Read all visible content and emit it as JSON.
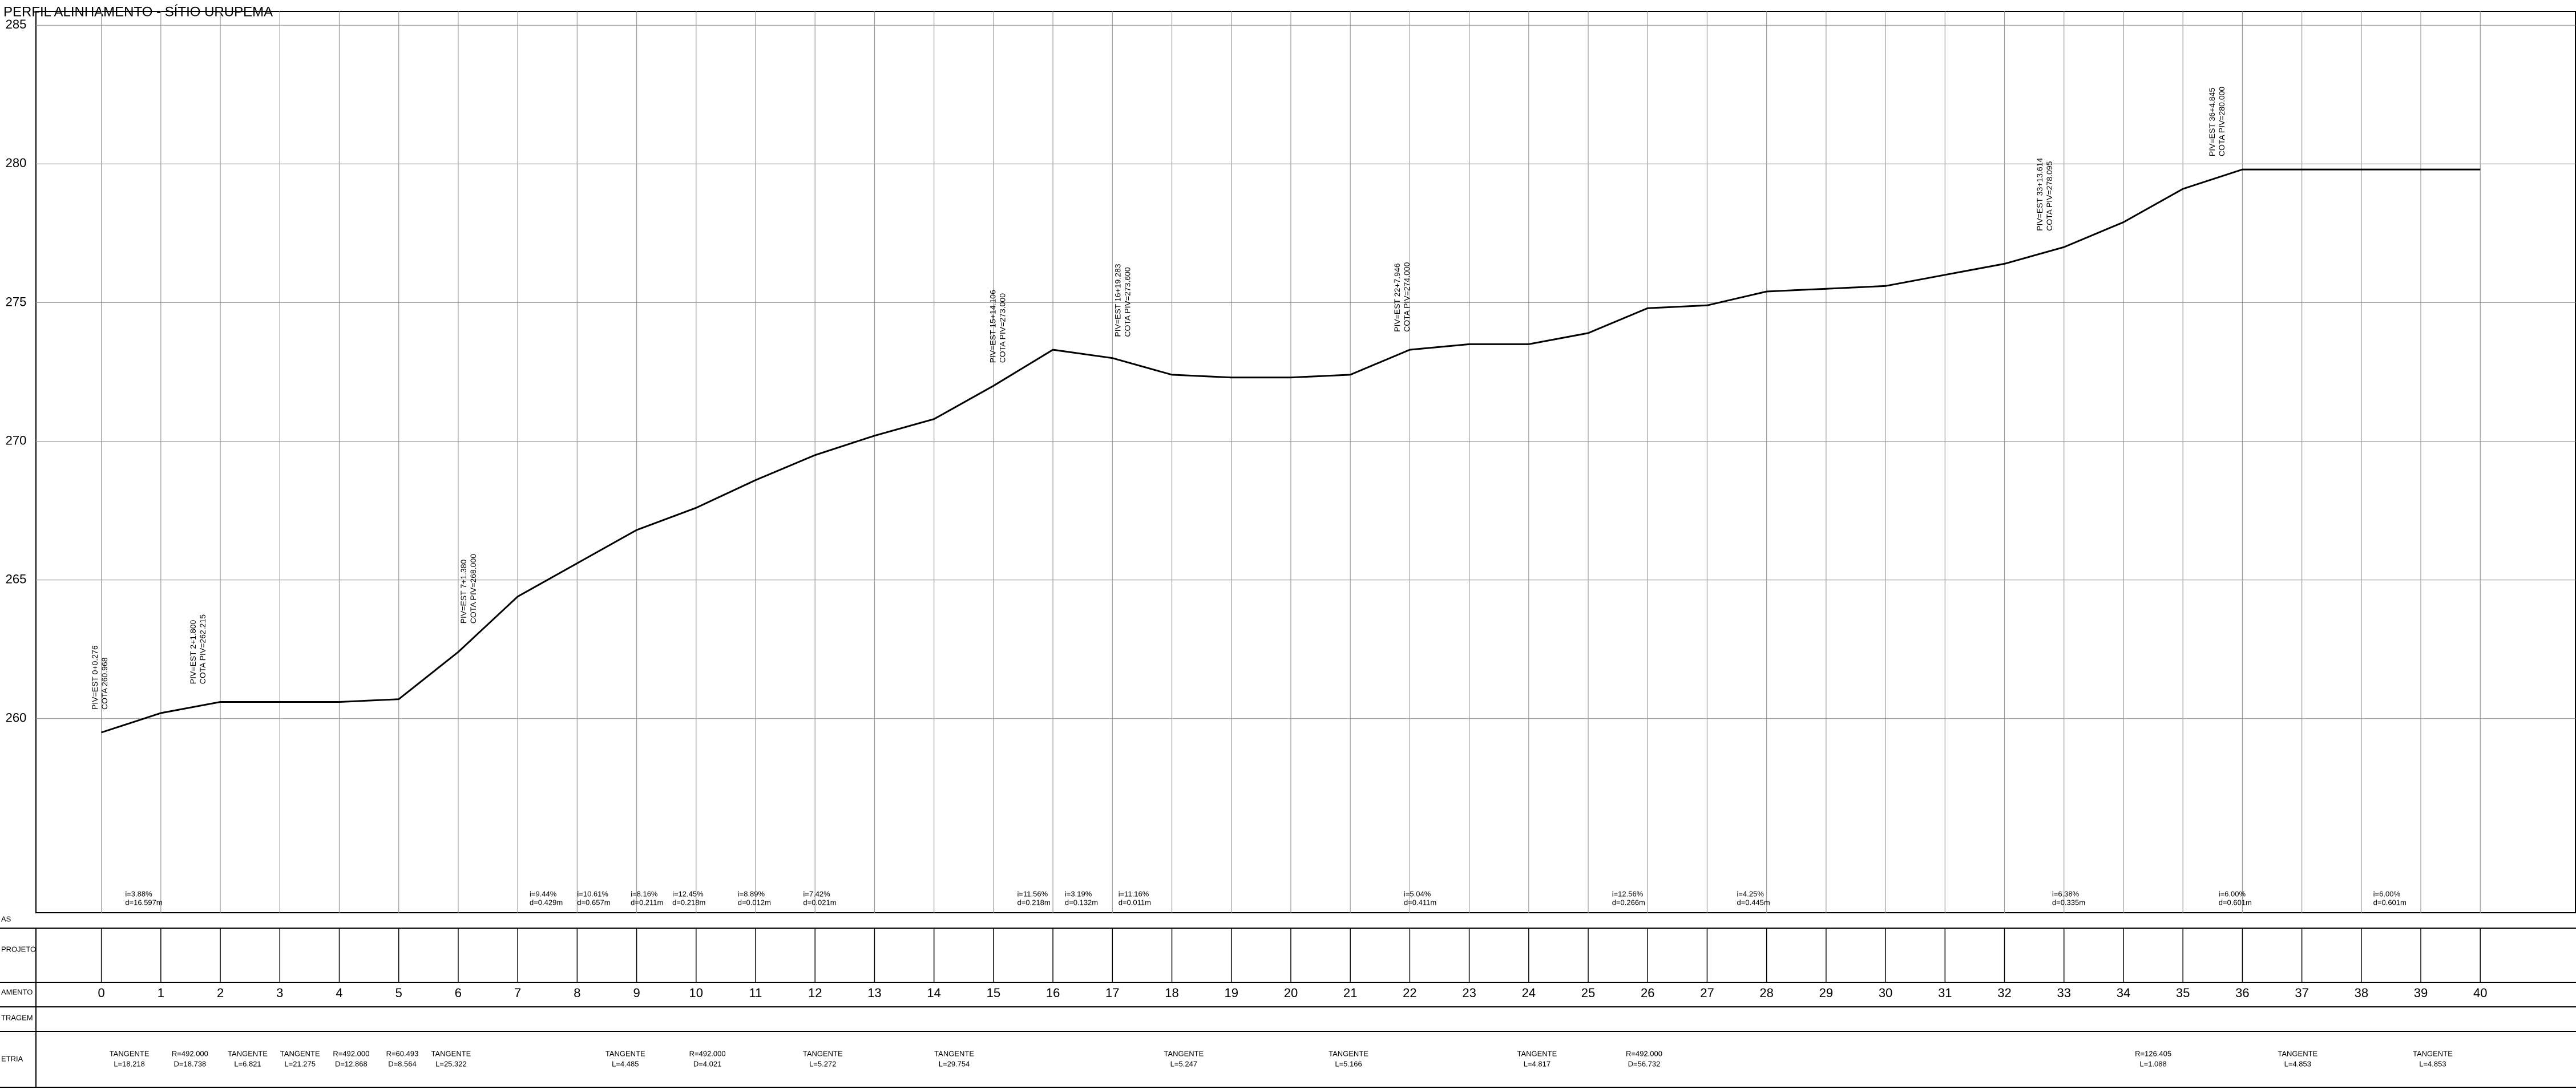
{
  "chart_data": {
    "type": "line",
    "title": "PERFIL ALINHAMENTO - SÍTIO URUPEMA",
    "x": [
      0,
      1,
      2,
      3,
      4,
      5,
      6,
      7,
      8,
      9,
      10,
      11,
      12,
      13,
      14,
      15,
      16,
      17,
      18,
      19,
      20,
      21,
      22,
      23,
      24,
      25,
      26,
      27,
      28,
      29,
      30,
      31,
      32,
      33,
      34,
      35,
      36,
      37,
      38,
      39,
      40
    ],
    "values": [
      259.5,
      260.2,
      260.6,
      260.6,
      260.6,
      260.7,
      262.4,
      264.4,
      265.6,
      266.8,
      267.6,
      268.6,
      269.5,
      270.2,
      270.8,
      272.0,
      273.3,
      273.0,
      272.4,
      272.3,
      272.3,
      272.4,
      273.3,
      273.5,
      273.5,
      273.9,
      274.8,
      274.9,
      275.4,
      275.5,
      275.6,
      276.0,
      276.4,
      277.0,
      277.9,
      279.1,
      279.8,
      279.8,
      279.8,
      279.8,
      279.8
    ],
    "color": "#000000",
    "xlim": [
      -1.1,
      41.6
    ],
    "ylim": [
      253,
      285.5
    ],
    "xticks": [
      0,
      1,
      2,
      3,
      4,
      5,
      6,
      7,
      8,
      9,
      10,
      11,
      12,
      13,
      14,
      15,
      16,
      17,
      18,
      19,
      20,
      21,
      22,
      23,
      24,
      25,
      26,
      27,
      28,
      29,
      30,
      31,
      32,
      33,
      34,
      35,
      36,
      37,
      38,
      39,
      40
    ],
    "yticks": [
      260,
      265,
      270,
      275,
      280,
      285
    ],
    "grid": true,
    "row_labels": [
      "AS",
      "PROJETO",
      "AMENTO",
      "TRAGEM",
      "ETRIA"
    ],
    "annotations": [
      {
        "x": -0.1,
        "text": [
          "PIV=EST 0+0.276",
          "COTA 260.968"
        ]
      },
      {
        "x": 1.55,
        "text": [
          "PIV=EST 2+1.800",
          "COTA PIV=262.215"
        ]
      },
      {
        "x": 6.1,
        "text": [
          "PIV=EST 7+1.380",
          "COTA PIV=268.000"
        ]
      },
      {
        "x": 15.0,
        "text": [
          "PIV=EST 15+14.106",
          "COTA PIV=273.000"
        ]
      },
      {
        "x": 17.1,
        "text": [
          "PIV=EST 16+19.283",
          "COTA PIV=273.600"
        ]
      },
      {
        "x": 21.8,
        "text": [
          "PIV=EST 22+7.946",
          "COTA PIV=274.000"
        ]
      },
      {
        "x": 32.6,
        "text": [
          "PIV=EST 33+13.614",
          "COTA PIV=278.095"
        ]
      },
      {
        "x": 35.5,
        "text": [
          "PIV=EST 36+4.845",
          "COTA PIV=280.000"
        ]
      }
    ],
    "grades": [
      {
        "x": 0.4,
        "text": [
          "i=3.88%",
          "d=16.597m"
        ]
      },
      {
        "x": 7.2,
        "text": [
          "i=9.44%",
          "d=0.429m"
        ]
      },
      {
        "x": 8.0,
        "text": [
          "i=10.61%",
          "d=0.657m"
        ]
      },
      {
        "x": 8.9,
        "text": [
          "i=8.16%",
          "d=0.211m"
        ]
      },
      {
        "x": 9.6,
        "text": [
          "i=12.45%",
          "d=0.218m"
        ]
      },
      {
        "x": 10.7,
        "text": [
          "i=8.89%",
          "d=0.012m"
        ]
      },
      {
        "x": 11.8,
        "text": [
          "i=7.42%",
          "d=0.021m"
        ]
      },
      {
        "x": 15.4,
        "text": [
          "i=11.56%",
          "d=0.218m"
        ]
      },
      {
        "x": 16.2,
        "text": [
          "i=3.19%",
          "d=0.132m"
        ]
      },
      {
        "x": 17.1,
        "text": [
          "i=11.16%",
          "d=0.011m"
        ]
      },
      {
        "x": 21.9,
        "text": [
          "i=5.04%",
          "d=0.411m"
        ]
      },
      {
        "x": 25.4,
        "text": [
          "i=12.56%",
          "d=0.266m"
        ]
      },
      {
        "x": 27.5,
        "text": [
          "i=4.25%",
          "d=0.445m"
        ]
      },
      {
        "x": 32.8,
        "text": [
          "i=6.38%",
          "d=0.335m"
        ]
      },
      {
        "x": 35.6,
        "text": [
          "i=6.00%",
          "d=0.601m"
        ]
      },
      {
        "x": 38.2,
        "text": [
          "i=6.00%",
          "d=0.601m"
        ]
      }
    ],
    "geometry": [
      {
        "x": 0.47,
        "text": [
          "TANGENTE",
          "L=18.218"
        ]
      },
      {
        "x": 1.49,
        "text": [
          "R=492.000",
          "D=18.738"
        ]
      },
      {
        "x": 2.46,
        "text": [
          "TANGENTE",
          "L=6.821"
        ]
      },
      {
        "x": 3.34,
        "text": [
          "TANGENTE",
          "L=21.275"
        ]
      },
      {
        "x": 4.2,
        "text": [
          "R=492.000",
          "D=12.868"
        ]
      },
      {
        "x": 5.06,
        "text": [
          "R=60.493",
          "D=8.564"
        ]
      },
      {
        "x": 5.88,
        "text": [
          "TANGENTE",
          "L=25.322"
        ]
      },
      {
        "x": 8.81,
        "text": [
          "TANGENTE",
          "L=4.485"
        ]
      },
      {
        "x": 10.19,
        "text": [
          "R=492.000",
          "D=4.021"
        ]
      },
      {
        "x": 12.13,
        "text": [
          "TANGENTE",
          "L=5.272"
        ]
      },
      {
        "x": 14.34,
        "text": [
          "TANGENTE",
          "L=29.754"
        ]
      },
      {
        "x": 18.2,
        "text": [
          "TANGENTE",
          "L=5.247"
        ]
      },
      {
        "x": 20.97,
        "text": [
          "TANGENTE",
          "L=5.166"
        ]
      },
      {
        "x": 24.14,
        "text": [
          "TANGENTE",
          "L=4.817"
        ]
      },
      {
        "x": 25.94,
        "text": [
          "R=492.000",
          "D=56.732"
        ]
      },
      {
        "x": 34.5,
        "text": [
          "R=126.405",
          "L=1.088"
        ]
      },
      {
        "x": 36.93,
        "text": [
          "TANGENTE",
          "L=4.853"
        ]
      },
      {
        "x": 39.2,
        "text": [
          "TANGENTE",
          "L=4.853"
        ]
      }
    ]
  }
}
